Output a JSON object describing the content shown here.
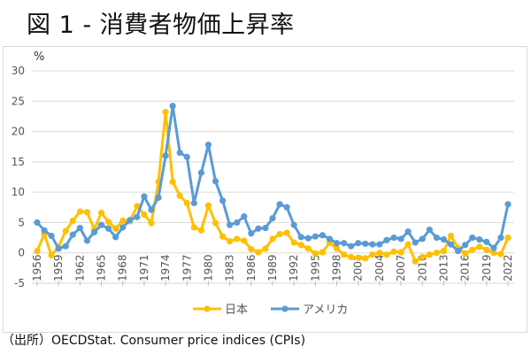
{
  "page": {
    "title": "図 1 - 消費者物価上昇率",
    "source": "（出所）OECDStat. Consumer price indices (CPIs)"
  },
  "chart_data": {
    "type": "line",
    "title": "図 1 - 消費者物価上昇率",
    "xlabel": "",
    "ylabel": "%",
    "ylim": [
      -5,
      30
    ],
    "yticks": [
      -5,
      0,
      5,
      10,
      15,
      20,
      25,
      30
    ],
    "grid": true,
    "legend_position": "bottom",
    "x": [
      1956,
      1957,
      1958,
      1959,
      1960,
      1961,
      1962,
      1963,
      1964,
      1965,
      1966,
      1967,
      1968,
      1969,
      1970,
      1971,
      1972,
      1973,
      1974,
      1975,
      1976,
      1977,
      1978,
      1979,
      1980,
      1981,
      1982,
      1983,
      1984,
      1985,
      1986,
      1987,
      1988,
      1989,
      1990,
      1991,
      1992,
      1993,
      1994,
      1995,
      1996,
      1997,
      1998,
      1999,
      2000,
      2001,
      2002,
      2003,
      2004,
      2005,
      2006,
      2007,
      2008,
      2009,
      2010,
      2011,
      2012,
      2013,
      2014,
      2015,
      2016,
      2017,
      2018,
      2019,
      2020,
      2021,
      2022
    ],
    "xtick_labels": [
      "1956",
      "1959",
      "1962",
      "1965",
      "1968",
      "1971",
      "1974",
      "1977",
      "1980",
      "1983",
      "1986",
      "1989",
      "1992",
      "1995",
      "1998",
      "2001",
      "2004",
      "2007",
      "2010",
      "2013",
      "2016",
      "2019",
      "2022"
    ],
    "series": [
      {
        "name": "日本",
        "color": "#FFC000",
        "values": [
          0.3,
          3.1,
          -0.4,
          1.0,
          3.6,
          5.3,
          6.8,
          6.7,
          3.9,
          6.6,
          5.1,
          4.0,
          5.3,
          5.2,
          7.7,
          6.3,
          4.9,
          11.7,
          23.2,
          11.7,
          9.4,
          8.2,
          4.2,
          3.7,
          7.8,
          4.9,
          2.7,
          1.9,
          2.3,
          2.0,
          0.6,
          0.1,
          0.7,
          2.3,
          3.1,
          3.3,
          1.7,
          1.3,
          0.7,
          -0.1,
          0.1,
          1.7,
          0.7,
          -0.3,
          -0.7,
          -0.8,
          -0.9,
          -0.3,
          0.0,
          -0.3,
          0.2,
          0.1,
          1.4,
          -1.4,
          -0.7,
          -0.3,
          0.0,
          0.3,
          2.8,
          0.8,
          -0.1,
          0.5,
          1.0,
          0.5,
          0.0,
          -0.2,
          2.5
        ]
      },
      {
        "name": "アメリカ",
        "color": "#5B9BD5",
        "values": [
          5.0,
          3.7,
          2.8,
          0.7,
          1.1,
          3.0,
          4.1,
          2.0,
          3.4,
          4.6,
          4.0,
          2.6,
          4.2,
          5.4,
          5.9,
          9.3,
          7.1,
          9.1,
          16.0,
          24.2,
          16.5,
          15.8,
          8.2,
          13.2,
          17.8,
          11.8,
          8.6,
          4.6,
          5.0,
          6.0,
          3.2,
          4.0,
          4.1,
          5.7,
          8.0,
          7.5,
          4.6,
          2.6,
          2.4,
          2.7,
          2.9,
          2.3,
          1.6,
          1.6,
          1.1,
          1.6,
          1.5,
          1.4,
          1.4,
          2.1,
          2.5,
          2.3,
          3.5,
          1.7,
          2.3,
          3.8,
          2.5,
          2.2,
          1.4,
          0.3,
          1.3,
          2.5,
          2.2,
          1.8,
          0.8,
          2.5,
          8.0
        ]
      }
    ]
  }
}
